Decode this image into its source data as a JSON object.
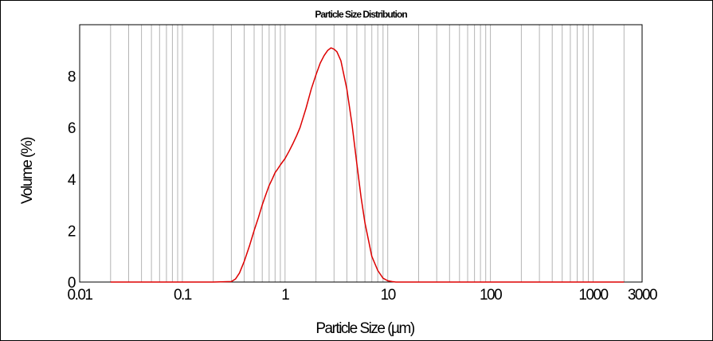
{
  "chart_data": {
    "type": "line",
    "title": "Particle Size Distribution",
    "xlabel": "Particle Size (µm)",
    "ylabel": "Volume (%)",
    "x_scale": "log",
    "xlim": [
      0.01,
      3000
    ],
    "ylim": [
      0,
      10
    ],
    "grid": true,
    "colors": {
      "line": "#dd0000",
      "grid": "#b4b4b4"
    },
    "x_ticks": [
      {
        "value": 0.01,
        "label": "0.01"
      },
      {
        "value": 0.1,
        "label": "0.1"
      },
      {
        "value": 1,
        "label": "1"
      },
      {
        "value": 10,
        "label": "10"
      },
      {
        "value": 100,
        "label": "100"
      },
      {
        "value": 1000,
        "label": "1000"
      },
      {
        "value": 3000,
        "label": "3000"
      }
    ],
    "y_ticks": [
      {
        "value": 0,
        "label": "0"
      },
      {
        "value": 2,
        "label": "2"
      },
      {
        "value": 4,
        "label": "4"
      },
      {
        "value": 6,
        "label": "6"
      },
      {
        "value": 8,
        "label": "8"
      }
    ],
    "series": [
      {
        "x": [
          0.02,
          0.1,
          0.2,
          0.3,
          0.33,
          0.36,
          0.4,
          0.45,
          0.5,
          0.55,
          0.6,
          0.65,
          0.7,
          0.75,
          0.8,
          0.85,
          0.9,
          1.0,
          1.1,
          1.2,
          1.3,
          1.4,
          1.6,
          1.8,
          2.0,
          2.2,
          2.4,
          2.6,
          2.8,
          3.0,
          3.2,
          3.5,
          4.0,
          4.5,
          5.0,
          5.5,
          6.0,
          7.0,
          8.0,
          9.0,
          10.0,
          11.0,
          12.0,
          20.0,
          100.0,
          1000.0,
          2000.0
        ],
        "y": [
          0,
          0,
          0,
          0.02,
          0.12,
          0.35,
          0.8,
          1.4,
          2.0,
          2.5,
          3.0,
          3.4,
          3.75,
          4.0,
          4.25,
          4.4,
          4.55,
          4.8,
          5.1,
          5.4,
          5.7,
          6.0,
          6.75,
          7.5,
          8.05,
          8.5,
          8.8,
          9.0,
          9.1,
          9.05,
          8.95,
          8.6,
          7.5,
          6.1,
          4.6,
          3.3,
          2.3,
          1.0,
          0.45,
          0.15,
          0.05,
          0.02,
          0,
          0,
          0,
          0,
          0
        ]
      }
    ]
  }
}
